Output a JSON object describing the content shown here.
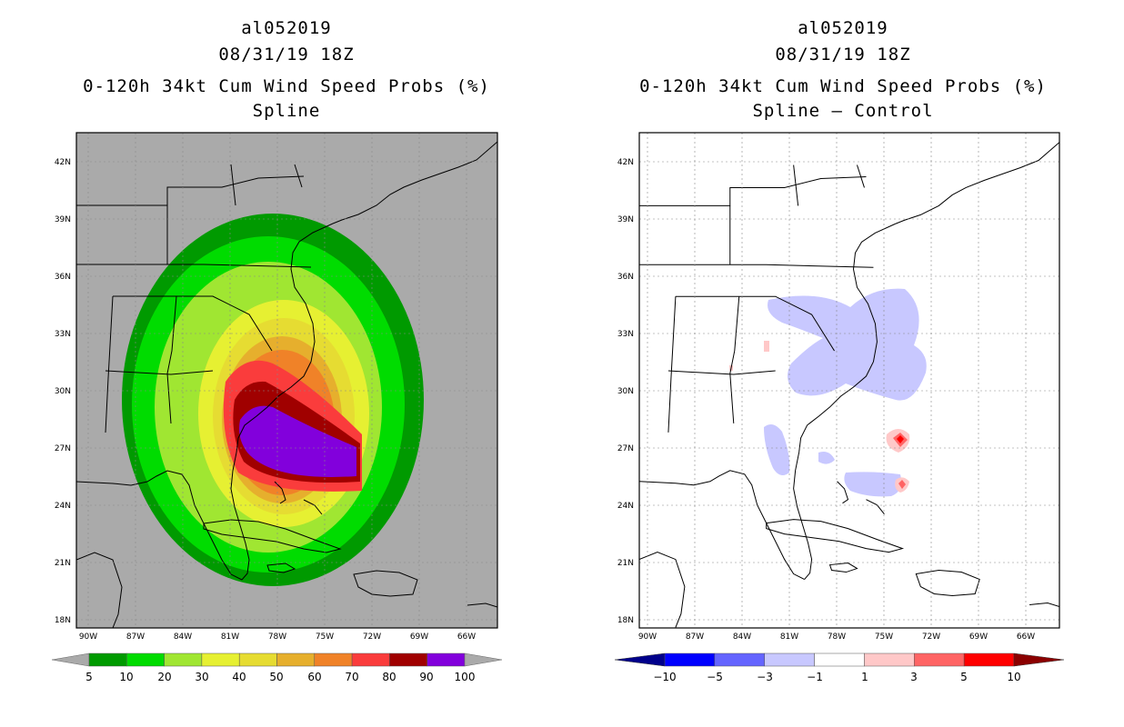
{
  "left_panel": {
    "storm_id": "al052019",
    "datetime": "08/31/19 18Z",
    "product": "0-120h 34kt Cum Wind Speed Probs (%)",
    "subtitle": "Spline",
    "background_color": "#aaaaaa",
    "colorbar": {
      "labels": [
        "5",
        "10",
        "20",
        "30",
        "40",
        "50",
        "60",
        "70",
        "80",
        "90",
        "100"
      ],
      "colors": [
        "#009a00",
        "#00dc00",
        "#a0e632",
        "#e6f032",
        "#e6dc32",
        "#e6af2d",
        "#f08228",
        "#fa3c3c",
        "#a00000",
        "#8200dc"
      ]
    }
  },
  "right_panel": {
    "storm_id": "al052019",
    "datetime": "08/31/19 18Z",
    "product": "0-120h 34kt Cum Wind Speed Probs (%)",
    "subtitle": "Spline – Control",
    "background_color": "#ffffff",
    "colorbar": {
      "labels": [
        "−10",
        "−5",
        "−3",
        "−1",
        "1",
        "3",
        "5",
        "10"
      ],
      "colors": [
        "#00008b",
        "#0000ff",
        "#6464ff",
        "#c8c8ff",
        "#ffffff",
        "#ffc8c8",
        "#ff6464",
        "#ff0000",
        "#8b0000"
      ]
    }
  },
  "axes": {
    "lon_labels": [
      "90W",
      "87W",
      "84W",
      "81W",
      "78W",
      "75W",
      "72W",
      "69W",
      "66W"
    ],
    "lat_labels": [
      "42N",
      "39N",
      "36N",
      "33N",
      "30N",
      "27N",
      "24N",
      "21N",
      "18N"
    ]
  }
}
